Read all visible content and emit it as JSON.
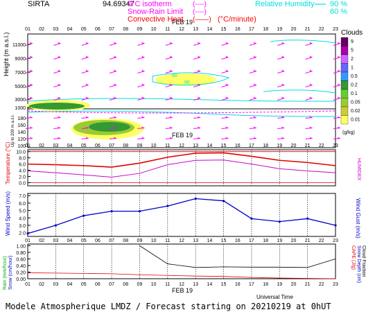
{
  "header": {
    "site": "SIRTA",
    "code": "94.69347",
    "legend_freezing": "0°C isotherm",
    "legend_snow": "Snow-Rain Limit",
    "legend_convective": "Convective Heat.",
    "legend_convective_unit": "(°C/minute)",
    "legend_rh": "Relative Humidity",
    "rh_levels": [
      "90 %",
      "60 %"
    ],
    "legend_dash_symbol": "(----)",
    "legend_solid_symbol": "(——)"
  },
  "footer": {
    "text": "Modele Atmospherique LMDZ / Forecast starting on 20210219 at 0hUT",
    "xaxis_title": "Universal Time"
  },
  "colors": {
    "freezing": "#ff00ff",
    "convective": "#ff0000",
    "rh": "#00e0e0",
    "temperature": "#e00000",
    "humidex": "#cc00cc",
    "wind": "#0000cc",
    "rain": "#e00000",
    "cloud_fraction": "#000000",
    "arrows": "#ff00ff"
  },
  "hours": [
    "01",
    "02",
    "03",
    "04",
    "05",
    "06",
    "07",
    "08",
    "09",
    "10",
    "11",
    "12",
    "13",
    "14",
    "15",
    "16",
    "17",
    "18",
    "19",
    "20",
    "21",
    "22",
    "23"
  ],
  "date_label": "FEB 19",
  "chart_data": [
    {
      "type": "heatmap",
      "panel": "clouds-height",
      "ylabel": "Height (m a.s.l.)",
      "ylabel_lower": "Up to 200 m a.s.l.",
      "yticks_upper": [
        "11000",
        "9000",
        "7000",
        "5000",
        "3000",
        "1000"
      ],
      "yticks_lower": [
        "180",
        "160",
        "140",
        "120",
        "100"
      ],
      "cloud_colorbar": {
        "title": "Clouds",
        "labels": [
          "9",
          "5",
          "2",
          "1",
          "0.5",
          "0.2",
          "0.1",
          "0.05",
          "0.02",
          "0.01"
        ],
        "unit": "(g/kg)",
        "colors": [
          "#660066",
          "#aa00aa",
          "#cc66ff",
          "#6666ff",
          "#3399ff",
          "#339933",
          "#66cc33",
          "#99cc33",
          "#cccc33",
          "#ffff66"
        ]
      },
      "rh_contour_labels": [
        "60",
        "90"
      ],
      "wind_arrows": "wind direction arrows at each level"
    },
    {
      "type": "line",
      "panel": "temperature",
      "ylabel": "Temperature (°C)",
      "ylabel_right": "HUMIDEX",
      "yticks": [
        "10.0",
        "8.0",
        "6.0",
        "4.0",
        "2.0",
        "0.0"
      ],
      "ylim": [
        -1,
        10.6
      ],
      "series": [
        {
          "name": "Temperature",
          "x": [
            1,
            3,
            5,
            7,
            9,
            11,
            13,
            15,
            17,
            19,
            21,
            23
          ],
          "values": [
            6.0,
            5.8,
            5.5,
            5.0,
            6.3,
            8.2,
            9.5,
            9.6,
            8.5,
            7.2,
            6.5,
            5.5
          ]
        },
        {
          "name": "HUMIDEX",
          "x": [
            1,
            3,
            5,
            7,
            9,
            11,
            13,
            15,
            17,
            19,
            21,
            23
          ],
          "values": [
            3.8,
            3.2,
            2.5,
            1.8,
            3.0,
            5.8,
            7.2,
            7.3,
            6.0,
            4.5,
            3.8,
            3.2
          ]
        }
      ]
    },
    {
      "type": "line",
      "panel": "wind",
      "ylabel": "Wind Speed (m/s)",
      "ylabel_right": "Wind Gust (m/s)",
      "yticks": [
        "7.0",
        "6.0",
        "5.0",
        "4.0",
        "3.0",
        "2.0"
      ],
      "ylim": [
        1.5,
        7.3
      ],
      "series": [
        {
          "name": "Wind Speed",
          "x": [
            1,
            3,
            5,
            7,
            9,
            11,
            13,
            15,
            17,
            19,
            21,
            23
          ],
          "values": [
            1.9,
            3.0,
            4.3,
            4.9,
            4.9,
            5.6,
            6.6,
            6.3,
            3.9,
            3.5,
            3.9,
            3.0
          ]
        }
      ]
    },
    {
      "type": "line",
      "panel": "rain-cloud",
      "ylabel": "Rain (mm/hour)",
      "ylabel2": "Snow (cm/hour)",
      "ylabel_right": "CAPE (J/g)",
      "ylabel_right2": "Snow Depth (cm)",
      "ylabel_right3": "Cloud Fraction",
      "yticks": [
        "1.00",
        "0.80",
        "0.60",
        "0.40",
        "0.20",
        "0.00"
      ],
      "ylim": [
        0,
        1.05
      ],
      "series": [
        {
          "name": "Cloud Fraction",
          "x": [
            9,
            11,
            13,
            15,
            17,
            19,
            21,
            23
          ],
          "values": [
            1.0,
            0.45,
            0.34,
            0.36,
            0.35,
            0.35,
            0.34,
            0.6
          ]
        },
        {
          "name": "Rain",
          "x": [
            1,
            3,
            5,
            7,
            9,
            11,
            13,
            15,
            17,
            19,
            21,
            23
          ],
          "values": [
            0.18,
            0.17,
            0.16,
            0.15,
            0.12,
            0.1,
            0.08,
            0.07,
            0.04,
            0.02,
            0.01,
            0.0
          ]
        }
      ]
    }
  ]
}
